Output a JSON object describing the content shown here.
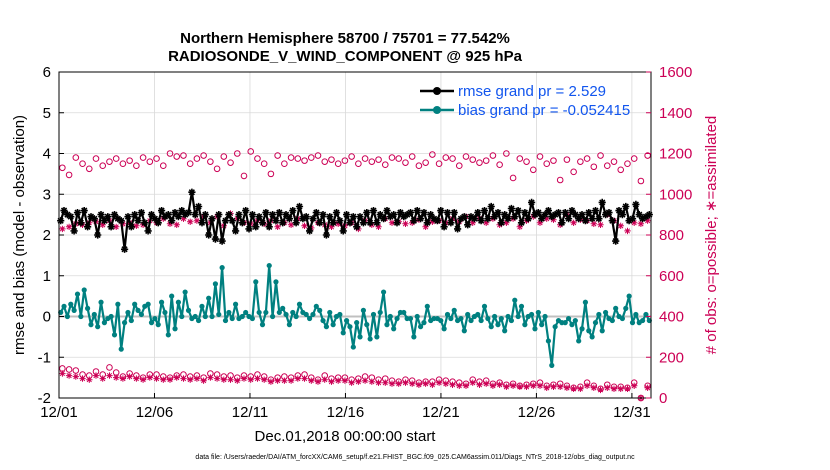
{
  "chart_data": {
    "type": "line",
    "title": "Northern Hemisphere 58700 / 75701 = 77.542%",
    "subtitle": "RADIOSONDE_V_WIND_COMPONENT @ 925 hPa",
    "xlabel": "Dec.01,2018 00:00:00 start",
    "ylabel": "rmse and bias (model - observation)",
    "ylabel_right": "# of obs: o=possible; ∗=assimilated",
    "footnote": "data file: /Users/raeder/DAI/ATM_forcXX/CAM6_setup/f.e21.FHIST_BGC.f09_025.CAM6assim.011/Diags_NTrS_2018-12/obs_diag_output.nc",
    "xlim": [
      1,
      32
    ],
    "ylim": [
      -2,
      6
    ],
    "ylim_right": [
      0,
      1600
    ],
    "x_ticks": [
      1,
      6,
      11,
      16,
      21,
      26,
      31
    ],
    "x_tick_labels": [
      "12/01",
      "12/06",
      "12/11",
      "12/16",
      "12/21",
      "12/26",
      "12/31"
    ],
    "y_ticks": [
      -2,
      -1,
      0,
      1,
      2,
      3,
      4,
      5,
      6
    ],
    "y_tick_labels": [
      "-2",
      "-1",
      "0",
      "1",
      "2",
      "3",
      "4",
      "5",
      "6"
    ],
    "y_ticks_right": [
      0,
      200,
      400,
      600,
      800,
      1000,
      1200,
      1400,
      1600
    ],
    "y_tick_labels_right": [
      "0",
      "200",
      "400",
      "600",
      "800",
      "1000",
      "1200",
      "1400",
      "1600"
    ],
    "legend_position": "top-right",
    "zero_line": 0,
    "colors": {
      "rmse": "#000000",
      "bias": "#008080",
      "obs": "#cc0055",
      "zero": "#c0c0c0",
      "legend_text": "#1155ee"
    },
    "series": [
      {
        "name": "rmse grand pr = 2.529",
        "key": "rmse",
        "axis": "left",
        "values": [
          2.35,
          2.6,
          2.5,
          2.45,
          2.1,
          2.55,
          2.3,
          2.6,
          2.2,
          2.45,
          2.4,
          2.0,
          2.5,
          2.35,
          2.45,
          2.2,
          2.5,
          2.4,
          2.35,
          1.65,
          2.45,
          2.2,
          2.5,
          2.35,
          2.55,
          2.3,
          2.1,
          2.5,
          2.4,
          2.3,
          2.6,
          2.45,
          2.5,
          2.35,
          2.55,
          2.45,
          2.6,
          2.5,
          2.55,
          3.05,
          2.5,
          2.7,
          2.3,
          2.5,
          2.0,
          2.4,
          1.9,
          2.5,
          1.85,
          2.35,
          2.5,
          2.35,
          2.1,
          2.5,
          2.3,
          2.6,
          2.15,
          2.5,
          2.2,
          2.45,
          2.3,
          2.55,
          2.2,
          2.5,
          2.35,
          2.55,
          2.3,
          2.5,
          2.4,
          2.6,
          2.3,
          2.7,
          2.4,
          2.45,
          2.1,
          2.4,
          2.55,
          2.3,
          2.5,
          2.0,
          2.45,
          2.3,
          2.55,
          2.35,
          2.1,
          2.5,
          2.3,
          2.45,
          2.2,
          2.45,
          2.3,
          2.55,
          2.3,
          2.6,
          2.3,
          2.5,
          2.4,
          2.6,
          2.45,
          2.5,
          2.3,
          2.55,
          2.45,
          2.5,
          2.55,
          2.35,
          2.6,
          2.4,
          2.55,
          2.3,
          2.5,
          2.4,
          2.35,
          2.6,
          2.2,
          2.55,
          2.3,
          2.55,
          2.15,
          2.4,
          2.45,
          2.25,
          2.45,
          2.4,
          2.55,
          2.35,
          2.6,
          2.4,
          2.7,
          2.45,
          2.55,
          2.3,
          2.5,
          2.4,
          2.65,
          2.45,
          2.6,
          2.3,
          2.55,
          2.4,
          2.8,
          2.5,
          2.55,
          2.4,
          2.5,
          2.6,
          2.45,
          2.5,
          2.55,
          2.3,
          2.55,
          2.4,
          2.6,
          2.5,
          2.4,
          2.5,
          2.35,
          2.55,
          2.4,
          2.6,
          2.4,
          2.8,
          2.5,
          2.55,
          2.35,
          1.85,
          2.6,
          2.5,
          2.7,
          2.35,
          2.4,
          2.75,
          2.5,
          2.4,
          2.45,
          2.5
        ]
      },
      {
        "name": "bias grand pr = -0.052415",
        "key": "bias",
        "axis": "left",
        "values": [
          0.1,
          0.25,
          0.0,
          0.3,
          0.15,
          0.55,
          0.0,
          0.65,
          0.2,
          -0.2,
          0.05,
          -0.25,
          0.35,
          -0.15,
          -0.05,
          0.0,
          -0.45,
          0.3,
          -0.8,
          -0.15,
          0.1,
          -0.1,
          0.3,
          0.15,
          0.05,
          0.25,
          0.3,
          -0.15,
          -0.05,
          -0.2,
          0.35,
          0.1,
          -0.45,
          0.5,
          -0.3,
          0.35,
          0.0,
          0.6,
          0.15,
          -0.05,
          0.0,
          -0.1,
          0.25,
          0.0,
          0.45,
          0.0,
          0.8,
          0.05,
          1.2,
          -0.1,
          0.1,
          -0.05,
          0.3,
          -0.05,
          0.0,
          0.1,
          0.0,
          -0.05,
          0.85,
          0.1,
          -0.2,
          0.1,
          1.25,
          0.0,
          0.85,
          0.1,
          0.2,
          0.05,
          -0.2,
          0.1,
          0.0,
          0.3,
          0.1,
          0.05,
          -0.05,
          0.05,
          0.25,
          0.15,
          -0.1,
          -0.25,
          0.1,
          -0.2,
          0.0,
          0.05,
          -0.4,
          -0.1,
          -0.25,
          -0.75,
          -0.15,
          -0.5,
          0.15,
          -0.2,
          -0.55,
          0.05,
          -0.5,
          0.1,
          0.6,
          -0.2,
          0.0,
          -0.3,
          -0.05,
          0.1,
          0.1,
          -0.05,
          -0.05,
          -0.5,
          0.0,
          -0.25,
          -0.15,
          0.25,
          -0.1,
          -0.05,
          -0.05,
          -0.1,
          -0.3,
          0.05,
          -0.05,
          0.15,
          -0.1,
          -0.05,
          -0.35,
          0.05,
          -0.1,
          0.0,
          0.05,
          -0.1,
          0.25,
          -0.05,
          -0.25,
          0.0,
          -0.2,
          -0.05,
          -0.35,
          0.0,
          -0.1,
          0.4,
          0.0,
          0.25,
          -0.2,
          0.0,
          0.05,
          -0.3,
          0.1,
          -0.2,
          0.0,
          -0.6,
          -1.2,
          -0.25,
          -0.1,
          -0.15,
          -0.15,
          -0.05,
          -0.2,
          -0.1,
          -0.6,
          -0.3,
          0.35,
          -0.35,
          -0.5,
          -0.15,
          0.05,
          -0.35,
          0.1,
          -0.05,
          -0.1,
          0.2,
          0.0,
          -0.05,
          0.2,
          0.5,
          -0.15,
          0.05,
          -0.15,
          -0.1,
          0.05,
          -0.1
        ]
      },
      {
        "name": "possible obs",
        "key": "possible",
        "axis": "right",
        "marker": "o",
        "values": [
          1130,
          1095,
          1180,
          1150,
          1125,
          1175,
          1140,
          1160,
          1175,
          1150,
          1165,
          1140,
          1180,
          1160,
          1175,
          1140,
          1200,
          1185,
          1190,
          1150,
          1175,
          1190,
          1160,
          1125,
          1185,
          1155,
          1200,
          1090,
          1210,
          1175,
          1150,
          1100,
          1190,
          1150,
          1180,
          1175,
          1165,
          1180,
          1190,
          1160,
          1170,
          1150,
          1165,
          1185,
          1150,
          1175,
          1160,
          1170,
          1145,
          1180,
          1175,
          1155,
          1185,
          1140,
          1155,
          1195,
          1150,
          1180,
          1175,
          1140,
          1185,
          1170,
          1155,
          1165,
          1190,
          1145,
          1200,
          1080,
          1175,
          1160,
          1120,
          1185,
          1150,
          1165,
          1070,
          1170,
          1110,
          1160,
          1175,
          1135,
          1190,
          1140,
          1160,
          1120,
          1150,
          1175,
          1065,
          1190
        ]
      },
      {
        "name": "assimilated obs",
        "key": "assimilated",
        "axis": "right",
        "marker": "*",
        "values": [
          830,
          840,
          855,
          850,
          860,
          865,
          850,
          870,
          840,
          855,
          860,
          845,
          850,
          870,
          860,
          880,
          855,
          850,
          880,
          865,
          870,
          890,
          860,
          890,
          845,
          905,
          880,
          860,
          855,
          870,
          855,
          870,
          840,
          860,
          850,
          880,
          845,
          835,
          860,
          850,
          840,
          855,
          845,
          860,
          830,
          870,
          850,
          840,
          880,
          860,
          865,
          855,
          860,
          875,
          840,
          865,
          870,
          860,
          880,
          865,
          890,
          860,
          880,
          860,
          880,
          850,
          860,
          880,
          840,
          870,
          890,
          860,
          880,
          875,
          850,
          900,
          860,
          875,
          870,
          855,
          850,
          900,
          870,
          845,
          820,
          860,
          855,
          870
        ]
      },
      {
        "name": "possible obs (lower)",
        "key": "possible_low",
        "axis": "right",
        "marker": "o",
        "values": [
          145,
          140,
          135,
          115,
          110,
          130,
          115,
          150,
          125,
          105,
          120,
          110,
          100,
          115,
          115,
          105,
          100,
          110,
          115,
          105,
          110,
          100,
          120,
          115,
          105,
          110,
          100,
          110,
          105,
          115,
          105,
          90,
          100,
          105,
          100,
          110,
          115,
          100,
          90,
          110,
          95,
          100,
          100,
          90,
          95,
          105,
          100,
          90,
          95,
          85,
          80,
          90,
          85,
          75,
          80,
          80,
          90,
          85,
          80,
          75,
          70,
          90,
          80,
          85,
          70,
          75,
          65,
          70,
          60,
          65,
          70,
          75,
          60,
          65,
          70,
          60,
          50,
          55,
          75,
          60,
          45,
          65,
          55,
          55,
          50,
          75,
          0,
          60
        ]
      },
      {
        "name": "assimilated obs (lower)",
        "key": "assimilated_low",
        "axis": "right",
        "marker": "*",
        "values": [
          120,
          110,
          105,
          95,
          90,
          110,
          95,
          110,
          100,
          95,
          105,
          95,
          90,
          100,
          95,
          90,
          90,
          100,
          95,
          90,
          95,
          85,
          100,
          95,
          90,
          90,
          85,
          95,
          90,
          95,
          90,
          80,
          85,
          85,
          85,
          95,
          95,
          85,
          80,
          90,
          80,
          85,
          85,
          75,
          80,
          85,
          80,
          75,
          75,
          70,
          70,
          75,
          70,
          65,
          70,
          65,
          75,
          70,
          65,
          60,
          60,
          75,
          65,
          70,
          60,
          65,
          55,
          60,
          55,
          55,
          60,
          60,
          50,
          55,
          55,
          50,
          45,
          45,
          60,
          50,
          40,
          50,
          45,
          45,
          45,
          60,
          0,
          50
        ]
      }
    ]
  }
}
